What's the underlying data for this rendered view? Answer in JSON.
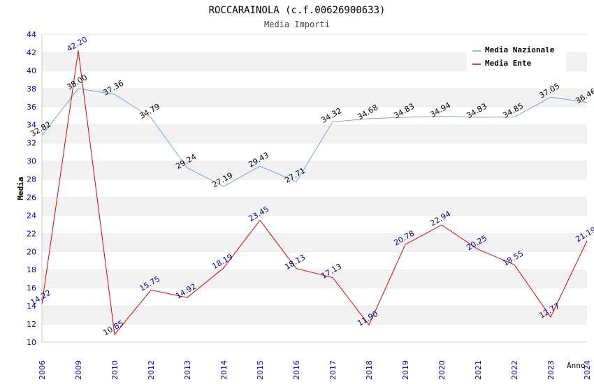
{
  "chart_data": {
    "type": "line",
    "title": "ROCCARAINOLA (c.f.00626900633)",
    "subtitle": "Media Importi",
    "xlabel": "Anno",
    "ylabel": "Media",
    "ylim": [
      10,
      44
    ],
    "y_ticks": [
      "10",
      "12",
      "14",
      "16",
      "18",
      "20",
      "22",
      "24",
      "26",
      "28",
      "30",
      "32",
      "34",
      "36",
      "38",
      "40",
      "42",
      "44"
    ],
    "categories": [
      "2006",
      "2009",
      "2010",
      "2012",
      "2013",
      "2014",
      "2015",
      "2016",
      "2017",
      "2018",
      "2019",
      "2020",
      "2021",
      "2022",
      "2023",
      "2024"
    ],
    "grid": "horizontal alternating bands",
    "legend_position": "top-right",
    "series": [
      {
        "name": "Media Nazionale",
        "color": "#6ea8e0",
        "label_color": "#000000",
        "values": [
          32.82,
          38.0,
          37.36,
          34.79,
          29.24,
          27.19,
          29.43,
          27.71,
          34.32,
          34.68,
          34.83,
          34.94,
          34.83,
          34.85,
          37.05,
          36.46
        ],
        "labels": [
          "32.82",
          "38.00",
          "37.36",
          "34.79",
          "29.24",
          "27.19",
          "29.43",
          "27.71",
          "34.32",
          "34.68",
          "34.83",
          "34.94",
          "34.83",
          "34.85",
          "37.05",
          "36.46"
        ]
      },
      {
        "name": "Media Ente",
        "color": "#e00000",
        "label_color": "#00008b",
        "values": [
          14.22,
          42.2,
          10.85,
          15.75,
          14.92,
          18.19,
          23.45,
          18.13,
          17.13,
          11.9,
          20.78,
          22.94,
          20.25,
          18.55,
          12.77,
          21.19
        ],
        "labels": [
          "14.22",
          "42.20",
          "10.85",
          "15.75",
          "14.92",
          "18.19",
          "23.45",
          "18.13",
          "17.13",
          "11.90",
          "20.78",
          "22.94",
          "20.25",
          "18.55",
          "12.77",
          "21.19"
        ]
      }
    ]
  }
}
